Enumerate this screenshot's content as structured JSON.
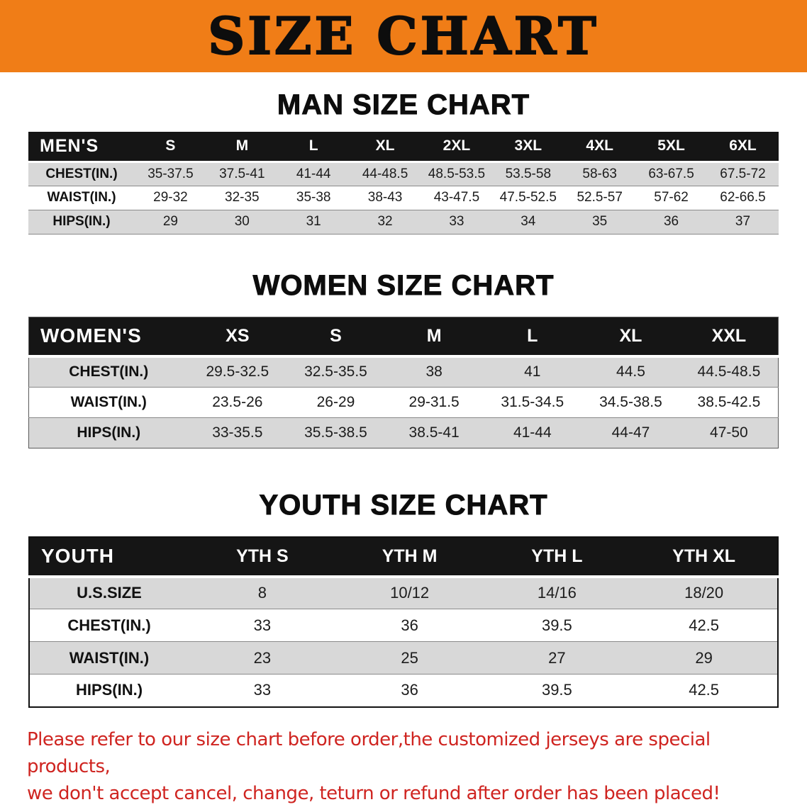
{
  "banner": {
    "title": "SIZE CHART"
  },
  "tables": [
    {
      "id": "men",
      "heading": "MAN SIZE CHART",
      "header": [
        "MEN'S",
        "S",
        "M",
        "L",
        "XL",
        "2XL",
        "3XL",
        "4XL",
        "5XL",
        "6XL"
      ],
      "rows": [
        [
          "CHEST(IN.)",
          "35-37.5",
          "37.5-41",
          "41-44",
          "44-48.5",
          "48.5-53.5",
          "53.5-58",
          "58-63",
          "63-67.5",
          "67.5-72"
        ],
        [
          "WAIST(IN.)",
          "29-32",
          "32-35",
          "35-38",
          "38-43",
          "43-47.5",
          "47.5-52.5",
          "52.5-57",
          "57-62",
          "62-66.5"
        ],
        [
          "HIPS(IN.)",
          "29",
          "30",
          "31",
          "32",
          "33",
          "34",
          "35",
          "36",
          "37"
        ]
      ]
    },
    {
      "id": "women",
      "heading": "WOMEN SIZE CHART",
      "header": [
        "WOMEN'S",
        "XS",
        "S",
        "M",
        "L",
        "XL",
        "XXL"
      ],
      "rows": [
        [
          "CHEST(IN.)",
          "29.5-32.5",
          "32.5-35.5",
          "38",
          "41",
          "44.5",
          "44.5-48.5"
        ],
        [
          "WAIST(IN.)",
          "23.5-26",
          "26-29",
          "29-31.5",
          "31.5-34.5",
          "34.5-38.5",
          "38.5-42.5"
        ],
        [
          "HIPS(IN.)",
          "33-35.5",
          "35.5-38.5",
          "38.5-41",
          "41-44",
          "44-47",
          "47-50"
        ]
      ]
    },
    {
      "id": "youth",
      "heading": "YOUTH SIZE CHART",
      "header": [
        "YOUTH",
        "YTH S",
        "YTH M",
        "YTH L",
        "YTH XL"
      ],
      "rows": [
        [
          "U.S.SIZE",
          "8",
          "10/12",
          "14/16",
          "18/20"
        ],
        [
          "CHEST(IN.)",
          "33",
          "36",
          "39.5",
          "42.5"
        ],
        [
          "WAIST(IN.)",
          "23",
          "25",
          "27",
          "29"
        ],
        [
          "HIPS(IN.)",
          "33",
          "36",
          "39.5",
          "42.5"
        ]
      ]
    }
  ],
  "footer": {
    "line1": "Please refer to our size chart before order,the customized jerseys are special products,",
    "line2": "we don't accept cancel, change, teturn or refund after order has been placed!"
  },
  "colors": {
    "banner_orange": "#f07d17",
    "header_black": "#151515",
    "row_gray": "#d8d8d8",
    "notice_red": "#cf2420"
  }
}
